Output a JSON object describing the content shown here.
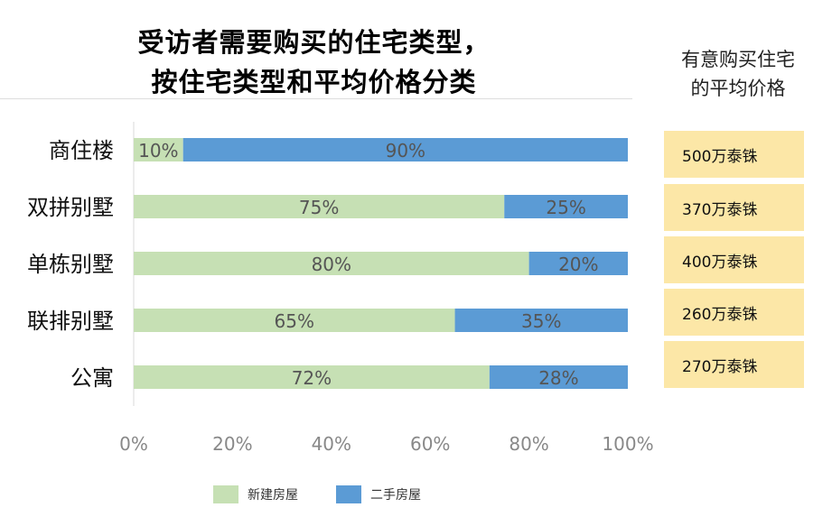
{
  "title": {
    "line1": "受访者需要购买的住宅类型，",
    "line2": "按住宅类型和平均价格分类"
  },
  "side_header": {
    "line1": "有意购买住宅",
    "line2": "的平均价格"
  },
  "prices": [
    "500万泰铢",
    "370万泰铢",
    "400万泰铢",
    "260万泰铢",
    "270万泰铢"
  ],
  "colors": {
    "new": "#c6e0b4",
    "resale": "#5b9bd5",
    "price_box": "#fce7a7"
  },
  "chart_data": {
    "type": "bar",
    "orientation": "horizontal",
    "stacked": true,
    "categories": [
      "商住楼",
      "双拼别墅",
      "单栋别墅",
      "联排别墅",
      "公寓"
    ],
    "series": [
      {
        "name": "新建房屋",
        "values": [
          10,
          75,
          80,
          65,
          72
        ],
        "labels": [
          "10%",
          "75%",
          "80%",
          "65%",
          "72%"
        ]
      },
      {
        "name": "二手房屋",
        "values": [
          90,
          25,
          20,
          35,
          28
        ],
        "labels": [
          "90%",
          "25%",
          "20%",
          "35%",
          "28%"
        ]
      }
    ],
    "xlim": [
      0,
      100
    ],
    "xticks": [
      "0%",
      "20%",
      "40%",
      "60%",
      "80%",
      "100%"
    ],
    "title": "受访者需要购买的住宅类型，按住宅类型和平均价格分类",
    "xlabel": "",
    "ylabel": "",
    "legend_position": "bottom",
    "grid": false
  }
}
